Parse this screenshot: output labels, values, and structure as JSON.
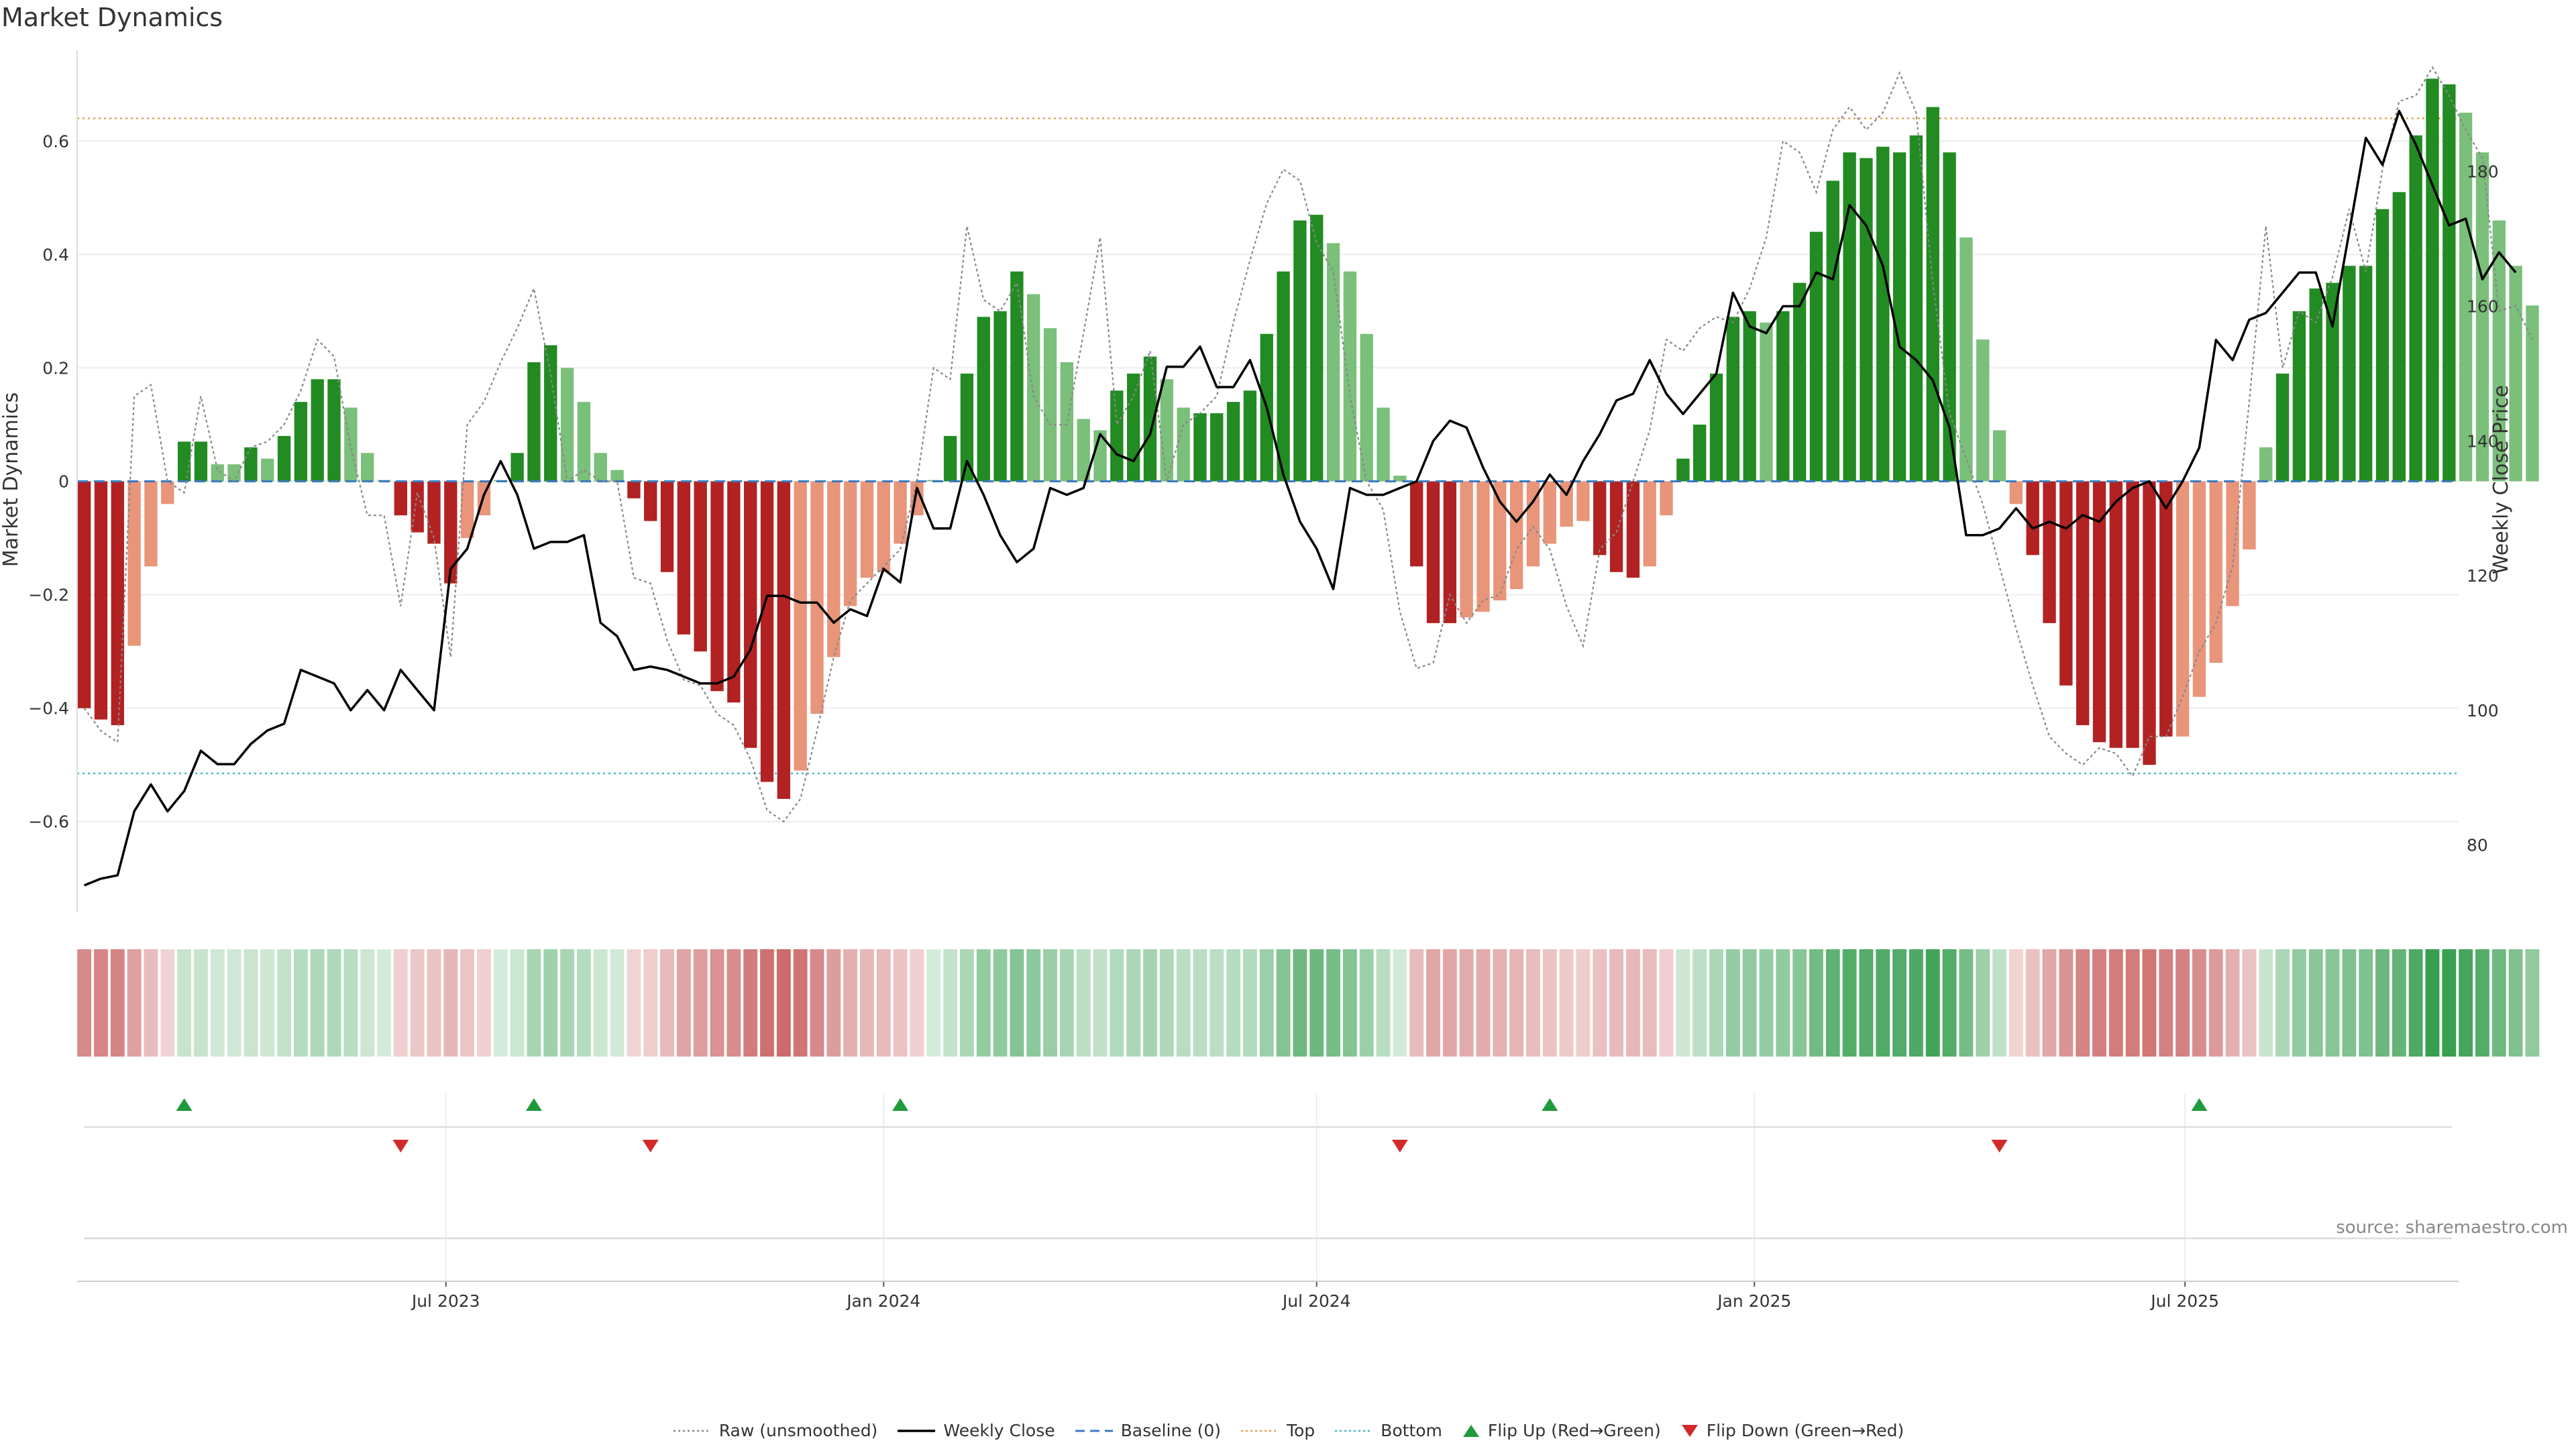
{
  "title": "Market Dynamics",
  "source": "source: sharemaestro.com",
  "legend": [
    {
      "label": "Raw (unsmoothed)",
      "kind": "dotted",
      "color": "#888888"
    },
    {
      "label": "Weekly Close",
      "kind": "solid",
      "color": "#000000"
    },
    {
      "label": "Baseline (0)",
      "kind": "dashed",
      "color": "#3a7abf"
    },
    {
      "label": "Top",
      "kind": "dotted",
      "color": "#e0a050"
    },
    {
      "label": "Bottom",
      "kind": "dotted",
      "color": "#40b8c8"
    },
    {
      "label": "Flip Up (Red→Green)",
      "kind": "triangle-up",
      "color": "#1f9a3a"
    },
    {
      "label": "Flip Down (Green→Red)",
      "kind": "triangle-down",
      "color": "#d22a2a"
    }
  ],
  "chart_data": {
    "type": "bar",
    "title": "Market Dynamics",
    "ylabel": "Market Dynamics",
    "y2label": "Weekly Close Price",
    "ylim": [
      -0.76,
      0.76
    ],
    "y2lim": [
      70,
      198
    ],
    "yticks": [
      -0.6,
      -0.4,
      -0.2,
      0,
      0.2,
      0.4,
      0.6
    ],
    "ytick_labels": [
      "−0.6",
      "−0.4",
      "−0.2",
      "0",
      "0.2",
      "0.4",
      "0.6"
    ],
    "y2ticks": [
      80,
      100,
      120,
      140,
      160,
      180
    ],
    "xlim": [
      "2023-01-27",
      "2025-10-24"
    ],
    "xticks": [
      {
        "date": "2023-07-01",
        "label": "Jul 2023"
      },
      {
        "date": "2024-01-01",
        "label": "Jan 2024"
      },
      {
        "date": "2024-07-01",
        "label": "Jul 2024"
      },
      {
        "date": "2025-01-01",
        "label": "Jan 2025"
      },
      {
        "date": "2025-07-01",
        "label": "Jul 2025"
      }
    ],
    "start_date": "2023-01-30",
    "week_step_days": 7,
    "top_line": 0.64,
    "bottom_line": -0.515,
    "baseline": 0,
    "colors": {
      "strong_green": "#228b22",
      "light_green": "#7abf7a",
      "strong_red": "#b22222",
      "light_red": "#e8957a",
      "raw": "#888888",
      "close": "#000000",
      "baseline": "#3a7abf",
      "top": "#e0a050",
      "bottom": "#40b8c8"
    },
    "dynamics": [
      -0.4,
      -0.42,
      -0.43,
      -0.29,
      -0.15,
      -0.04,
      0.07,
      0.07,
      0.03,
      0.03,
      0.06,
      0.04,
      0.08,
      0.14,
      0.18,
      0.18,
      0.13,
      0.05,
      0.0,
      -0.06,
      -0.09,
      -0.11,
      -0.18,
      -0.1,
      -0.06,
      0.0,
      0.05,
      0.21,
      0.24,
      0.2,
      0.14,
      0.05,
      0.02,
      -0.03,
      -0.07,
      -0.16,
      -0.27,
      -0.3,
      -0.37,
      -0.39,
      -0.47,
      -0.53,
      -0.56,
      -0.51,
      -0.41,
      -0.31,
      -0.22,
      -0.17,
      -0.16,
      -0.11,
      -0.06,
      0.0,
      0.08,
      0.19,
      0.29,
      0.3,
      0.37,
      0.33,
      0.27,
      0.21,
      0.11,
      0.09,
      0.16,
      0.19,
      0.22,
      0.18,
      0.13,
      0.12,
      0.12,
      0.14,
      0.16,
      0.26,
      0.37,
      0.46,
      0.47,
      0.42,
      0.37,
      0.26,
      0.13,
      0.01,
      -0.15,
      -0.25,
      -0.25,
      -0.24,
      -0.23,
      -0.21,
      -0.19,
      -0.15,
      -0.11,
      -0.08,
      -0.07,
      -0.13,
      -0.16,
      -0.17,
      -0.15,
      -0.06,
      0.04,
      0.1,
      0.19,
      0.29,
      0.3,
      0.28,
      0.3,
      0.35,
      0.44,
      0.53,
      0.58,
      0.57,
      0.59,
      0.58,
      0.61,
      0.66,
      0.58,
      0.43,
      0.25,
      0.09,
      -0.04,
      -0.13,
      -0.25,
      -0.36,
      -0.43,
      -0.46,
      -0.47,
      -0.47,
      -0.5,
      -0.45,
      -0.45,
      -0.38,
      -0.32,
      -0.22,
      -0.12,
      0.06,
      0.19,
      0.3,
      0.34,
      0.35,
      0.38,
      0.38,
      0.48,
      0.51,
      0.61,
      0.71,
      0.7,
      0.65,
      0.58,
      0.46,
      0.38,
      0.31
    ],
    "strong": [
      1,
      1,
      1,
      0,
      0,
      0,
      1,
      1,
      0,
      0,
      1,
      0,
      1,
      1,
      1,
      1,
      0,
      0,
      0,
      1,
      1,
      1,
      1,
      0,
      0,
      0,
      1,
      1,
      1,
      0,
      0,
      0,
      0,
      1,
      1,
      1,
      1,
      1,
      1,
      1,
      1,
      1,
      1,
      0,
      0,
      0,
      0,
      0,
      0,
      0,
      0,
      0,
      1,
      1,
      1,
      1,
      1,
      0,
      0,
      0,
      0,
      0,
      1,
      1,
      1,
      0,
      0,
      1,
      1,
      1,
      1,
      1,
      1,
      1,
      1,
      0,
      0,
      0,
      0,
      0,
      1,
      1,
      1,
      0,
      0,
      0,
      0,
      0,
      0,
      0,
      0,
      1,
      1,
      1,
      0,
      0,
      1,
      1,
      1,
      1,
      1,
      0,
      1,
      1,
      1,
      1,
      1,
      1,
      1,
      1,
      1,
      1,
      1,
      0,
      0,
      0,
      0,
      1,
      1,
      1,
      1,
      1,
      1,
      1,
      1,
      1,
      0,
      0,
      0,
      0,
      0,
      0,
      1,
      1,
      1,
      1,
      1,
      1,
      1,
      1,
      1,
      1,
      1,
      0,
      0,
      0,
      0,
      0
    ],
    "raw": [
      -0.4,
      -0.44,
      -0.46,
      0.15,
      0.17,
      0.0,
      -0.02,
      0.15,
      0.02,
      0.0,
      0.06,
      0.07,
      0.1,
      0.16,
      0.25,
      0.22,
      0.06,
      -0.06,
      -0.06,
      -0.22,
      -0.02,
      -0.1,
      -0.31,
      0.1,
      0.14,
      0.21,
      0.27,
      0.34,
      0.19,
      0.0,
      0.02,
      0.0,
      0.0,
      -0.17,
      -0.18,
      -0.28,
      -0.35,
      -0.36,
      -0.41,
      -0.43,
      -0.49,
      -0.58,
      -0.6,
      -0.56,
      -0.44,
      -0.31,
      -0.21,
      -0.18,
      -0.15,
      -0.12,
      0.0,
      0.2,
      0.18,
      0.45,
      0.32,
      0.3,
      0.35,
      0.15,
      0.1,
      0.1,
      0.26,
      0.43,
      0.1,
      0.15,
      0.23,
      0.0,
      0.1,
      0.12,
      0.15,
      0.28,
      0.39,
      0.49,
      0.55,
      0.53,
      0.42,
      0.37,
      0.15,
      0.0,
      -0.05,
      -0.23,
      -0.33,
      -0.32,
      -0.2,
      -0.25,
      -0.21,
      -0.2,
      -0.12,
      -0.08,
      -0.12,
      -0.22,
      -0.29,
      -0.12,
      -0.09,
      0.0,
      0.09,
      0.25,
      0.23,
      0.27,
      0.29,
      0.28,
      0.34,
      0.43,
      0.6,
      0.58,
      0.51,
      0.62,
      0.66,
      0.62,
      0.65,
      0.72,
      0.65,
      0.35,
      0.12,
      0.04,
      -0.04,
      -0.15,
      -0.26,
      -0.36,
      -0.45,
      -0.48,
      -0.5,
      -0.47,
      -0.48,
      -0.52,
      -0.45,
      -0.45,
      -0.38,
      -0.3,
      -0.25,
      -0.15,
      0.14,
      0.45,
      0.2,
      0.3,
      0.28,
      0.36,
      0.48,
      0.37,
      0.55,
      0.67,
      0.68,
      0.73,
      0.68,
      0.62,
      0.57,
      0.3,
      0.31,
      0.25
    ],
    "close": [
      74,
      75,
      75.5,
      85,
      89,
      85,
      88,
      94,
      92,
      92,
      95,
      97,
      98,
      106,
      105,
      104,
      100,
      103,
      100,
      106,
      103,
      100,
      121,
      124,
      132,
      137,
      132,
      124,
      125,
      125,
      126,
      113,
      111,
      106,
      106.5,
      106,
      105,
      104,
      104,
      105,
      109,
      117,
      117,
      116,
      116,
      113,
      115,
      114,
      121,
      119,
      133,
      127,
      127,
      137,
      132,
      126,
      122,
      124,
      133,
      132,
      133,
      141,
      138,
      137,
      141,
      151,
      151,
      154,
      148,
      148,
      152,
      145,
      135,
      128,
      124,
      118,
      133,
      132,
      132,
      133,
      134,
      140,
      143,
      142,
      136,
      131,
      128,
      131,
      135,
      132,
      137,
      141,
      146,
      147,
      152,
      147,
      144,
      147,
      150,
      162,
      157,
      156,
      160,
      160,
      165,
      164,
      175,
      172,
      166,
      154,
      152,
      149,
      142,
      126,
      126,
      127,
      130,
      127,
      128,
      127,
      129,
      128,
      131,
      133,
      134,
      130,
      134,
      139,
      155,
      152,
      158,
      159,
      162,
      165,
      165,
      157,
      171,
      185,
      181,
      189,
      184,
      178,
      172,
      173,
      164,
      168,
      165
    ]
  },
  "flips": {
    "up": [
      "2023-03-13",
      "2023-08-07",
      "2024-01-08",
      "2024-10-07",
      "2025-07-07"
    ],
    "down": [
      "2023-06-12",
      "2023-09-25",
      "2024-08-05",
      "2025-04-14"
    ]
  }
}
